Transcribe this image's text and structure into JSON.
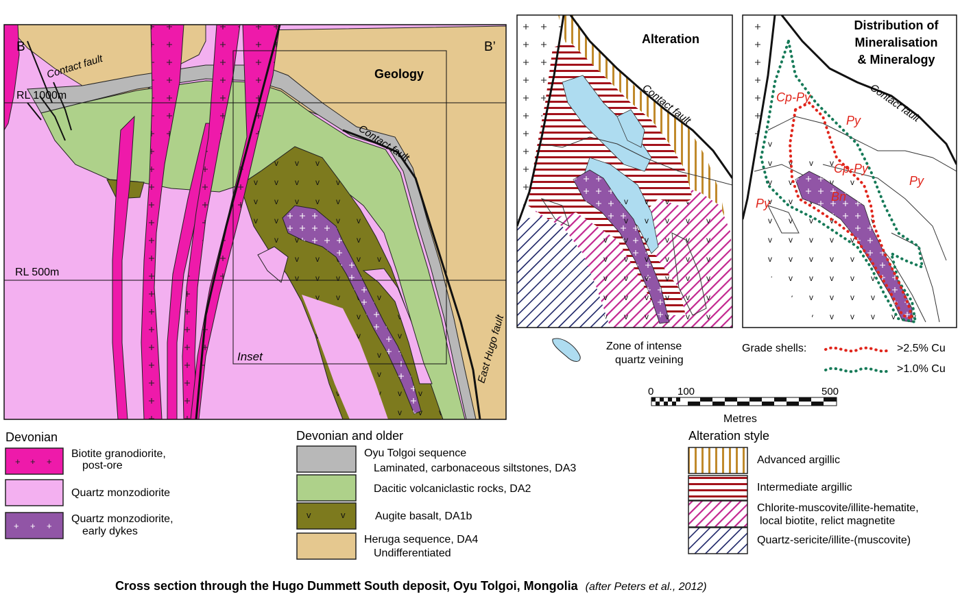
{
  "main_panel": {
    "left_label": "B",
    "right_label": "B’",
    "panel_title": "Geology",
    "contact_fault_upper": "Contact fault",
    "contact_fault_right": "Contact fault",
    "east_hugo_fault": "East Hugo fault",
    "rl_1000": "RL 1000m",
    "rl_500": "RL 500m",
    "inset_label": "Inset"
  },
  "alteration_panel": {
    "title": "Alteration",
    "contact_fault": "Contact fault"
  },
  "mineral_panel": {
    "title_line1": "Distribution of",
    "title_line2": "Mineralisation",
    "title_line3": "& Mineralogy",
    "contact_fault": "Contact fault",
    "labels": [
      "Cp-Py",
      "Py",
      "Cp-Py",
      "Py",
      "Py",
      "Bn"
    ]
  },
  "quartz_veining": {
    "line1": "Zone of intense",
    "line2": "quartz veining"
  },
  "grade_shells": {
    "label": "Grade shells:",
    "high": ">2.5% Cu",
    "low": ">1.0% Cu",
    "high_color": "#e0251b",
    "low_color": "#167a58"
  },
  "scale_bar": {
    "ticks": [
      "0",
      "100",
      "500"
    ],
    "unit": "Metres"
  },
  "legend": {
    "devonian": {
      "heading": "Devonian",
      "items": [
        {
          "line1": "Biotite granodiorite,",
          "line2": "post-ore",
          "color": "#ee1aaa"
        },
        {
          "line1": "Quartz monzodiorite",
          "line2": "",
          "color": "#f3b0f0"
        },
        {
          "line1": "Quartz monzodiorite,",
          "line2": "early dykes",
          "color": "#9155a6"
        }
      ]
    },
    "older": {
      "heading": "Devonian and older",
      "sub_heading": "Oyu Tolgoi sequence",
      "items": [
        {
          "line1": "Laminated, carbonaceous siltstones, DA3",
          "line2": "",
          "color": "#b8b8b8"
        },
        {
          "line1": "Dacitic volcaniclastic rocks, DA2",
          "line2": "",
          "color": "#aed18a"
        },
        {
          "line1": "Augite basalt, DA1b",
          "line2": "",
          "color": "#7d7a1e"
        },
        {
          "line1": "Heruga sequence, DA4",
          "line2": "Undifferentiated",
          "color": "#e5c88f"
        }
      ]
    },
    "alteration": {
      "heading": "Alteration style",
      "items": [
        {
          "line1": "Advanced argillic",
          "line2": ""
        },
        {
          "line1": "Intermediate argillic",
          "line2": ""
        },
        {
          "line1": "Chlorite-muscovite/illite-hematite,",
          "line2": "local biotite, relict magnetite"
        },
        {
          "line1": "Quartz-sericite/illite-(muscovite)",
          "line2": ""
        }
      ]
    }
  },
  "caption": {
    "main": "Cross section through the Hugo Dummett South deposit, Oyu Tolgoi, Mongolia",
    "citation": "(after Peters et al., 2012)"
  }
}
